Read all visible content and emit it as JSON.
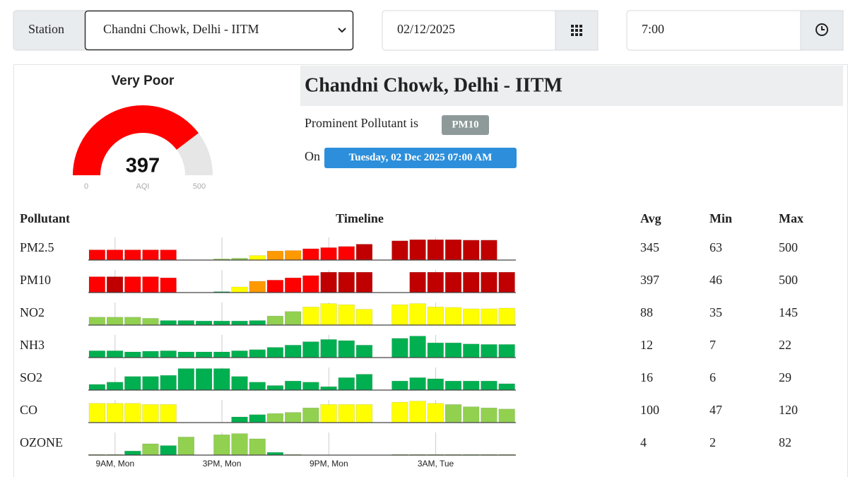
{
  "toolbar": {
    "station_label": "Station",
    "station": "Chandni Chowk, Delhi - IITM",
    "date": "02/12/2025",
    "time": "7:00"
  },
  "gauge": {
    "category": "Very Poor",
    "value": 397,
    "unit": "AQI",
    "min": 0,
    "max": 500,
    "color": "#ff0000"
  },
  "header": {
    "title": "Chandni Chowk, Delhi - IITM",
    "prominent_text": "Prominent Pollutant is",
    "prominent": "PM10",
    "on_text": "On",
    "datetime": "Tuesday, 02 Dec 2025 07:00 AM"
  },
  "table": {
    "columns": [
      "Pollutant",
      "Timeline",
      "Avg",
      "Min",
      "Max"
    ],
    "timeline_ylim": [
      0,
      100
    ],
    "timeline_categories": [
      null,
      "9AM, Mon",
      null,
      null,
      null,
      null,
      null,
      "3PM, Mon",
      null,
      null,
      null,
      null,
      null,
      "9PM, Mon",
      null,
      null,
      null,
      null,
      null,
      "3AM, Tue",
      null,
      null,
      null,
      null
    ],
    "rows": [
      {
        "name": "PM2.5",
        "avg": 345,
        "min": 63,
        "max": 500,
        "timeline": [
          45,
          45,
          45,
          45,
          45,
          null,
          null,
          5,
          8,
          20,
          40,
          42,
          50,
          55,
          60,
          70,
          null,
          85,
          90,
          90,
          90,
          88,
          88,
          null
        ],
        "colors": [
          "#ff0000",
          "#ff0000",
          "#ff0000",
          "#ff0000",
          "#ff0000",
          null,
          null,
          "#92d050",
          "#92d050",
          "#ffff00",
          "#ff9900",
          "#ff9900",
          "#ff0000",
          "#ff0000",
          "#ff0000",
          "#c00000",
          null,
          "#c00000",
          "#c00000",
          "#c00000",
          "#c00000",
          "#c00000",
          "#c00000",
          null
        ]
      },
      {
        "name": "PM10",
        "avg": 397,
        "min": 46,
        "max": 500,
        "timeline": [
          70,
          70,
          70,
          70,
          65,
          null,
          null,
          4,
          25,
          50,
          55,
          65,
          75,
          90,
          90,
          90,
          null,
          null,
          90,
          90,
          90,
          90,
          90,
          90
        ],
        "colors": [
          "#ff0000",
          "#c00000",
          "#ff0000",
          "#ff0000",
          "#ff0000",
          null,
          null,
          "#00b050",
          "#ffff00",
          "#ff9900",
          "#ff0000",
          "#ff0000",
          "#ff0000",
          "#c00000",
          "#c00000",
          "#c00000",
          null,
          null,
          "#c00000",
          "#c00000",
          "#c00000",
          "#c00000",
          "#c00000",
          "#c00000"
        ]
      },
      {
        "name": "NO2",
        "avg": 88,
        "min": 35,
        "max": 145,
        "timeline": [
          35,
          35,
          35,
          30,
          20,
          20,
          18,
          18,
          18,
          20,
          40,
          60,
          80,
          95,
          90,
          70,
          null,
          90,
          95,
          80,
          78,
          72,
          72,
          75
        ],
        "colors": [
          "#92d050",
          "#92d050",
          "#92d050",
          "#92d050",
          "#00b050",
          "#00b050",
          "#00b050",
          "#00b050",
          "#00b050",
          "#00b050",
          "#92d050",
          "#92d050",
          "#ffff00",
          "#ffff00",
          "#ffff00",
          "#ffff00",
          null,
          "#ffff00",
          "#ffff00",
          "#ffff00",
          "#ffff00",
          "#ffff00",
          "#ffff00",
          "#ffff00"
        ]
      },
      {
        "name": "NH3",
        "avg": 12,
        "min": 7,
        "max": 22,
        "timeline": [
          30,
          30,
          25,
          28,
          30,
          25,
          25,
          25,
          30,
          35,
          45,
          55,
          70,
          80,
          75,
          55,
          null,
          85,
          95,
          65,
          65,
          60,
          58,
          58
        ],
        "colors": [
          "#00b050",
          "#00b050",
          "#00b050",
          "#00b050",
          "#00b050",
          "#00b050",
          "#00b050",
          "#00b050",
          "#00b050",
          "#00b050",
          "#00b050",
          "#00b050",
          "#00b050",
          "#00b050",
          "#00b050",
          "#00b050",
          null,
          "#00b050",
          "#00b050",
          "#00b050",
          "#00b050",
          "#00b050",
          "#00b050",
          "#00b050"
        ]
      },
      {
        "name": "SO2",
        "avg": 16,
        "min": 6,
        "max": 29,
        "timeline": [
          25,
          35,
          60,
          60,
          65,
          95,
          95,
          95,
          60,
          35,
          20,
          40,
          35,
          15,
          55,
          70,
          null,
          40,
          55,
          50,
          40,
          40,
          40,
          28
        ],
        "colors": [
          "#00b050",
          "#00b050",
          "#00b050",
          "#00b050",
          "#00b050",
          "#00b050",
          "#00b050",
          "#00b050",
          "#00b050",
          "#00b050",
          "#00b050",
          "#00b050",
          "#00b050",
          "#00b050",
          "#00b050",
          "#00b050",
          null,
          "#00b050",
          "#00b050",
          "#00b050",
          "#00b050",
          "#00b050",
          "#00b050",
          "#00b050"
        ]
      },
      {
        "name": "CO",
        "avg": 100,
        "min": 47,
        "max": 120,
        "timeline": [
          85,
          85,
          85,
          80,
          80,
          null,
          null,
          null,
          25,
          35,
          40,
          45,
          65,
          80,
          80,
          80,
          null,
          90,
          95,
          85,
          80,
          70,
          65,
          60
        ],
        "colors": [
          "#ffff00",
          "#ffff00",
          "#ffff00",
          "#ffff00",
          "#ffff00",
          null,
          null,
          null,
          "#00b050",
          "#00b050",
          "#92d050",
          "#92d050",
          "#92d050",
          "#ffff00",
          "#ffff00",
          "#ffff00",
          null,
          "#ffff00",
          "#ffff00",
          "#ffff00",
          "#92d050",
          "#92d050",
          "#92d050",
          "#92d050"
        ]
      },
      {
        "name": "OZONE",
        "avg": 4,
        "min": 2,
        "max": 82,
        "timeline": [
          3,
          3,
          18,
          50,
          42,
          80,
          null,
          90,
          95,
          72,
          12,
          3,
          null,
          null,
          null,
          null,
          null,
          3,
          3,
          3,
          3,
          3,
          3,
          3
        ],
        "colors": [
          "#92d050",
          "#92d050",
          "#00b050",
          "#92d050",
          "#00b050",
          "#92d050",
          null,
          "#92d050",
          "#92d050",
          "#92d050",
          "#00b050",
          "#92d050",
          null,
          null,
          null,
          null,
          null,
          "#92d050",
          "#92d050",
          "#92d050",
          "#92d050",
          "#92d050",
          "#92d050",
          "#92d050"
        ]
      }
    ]
  }
}
